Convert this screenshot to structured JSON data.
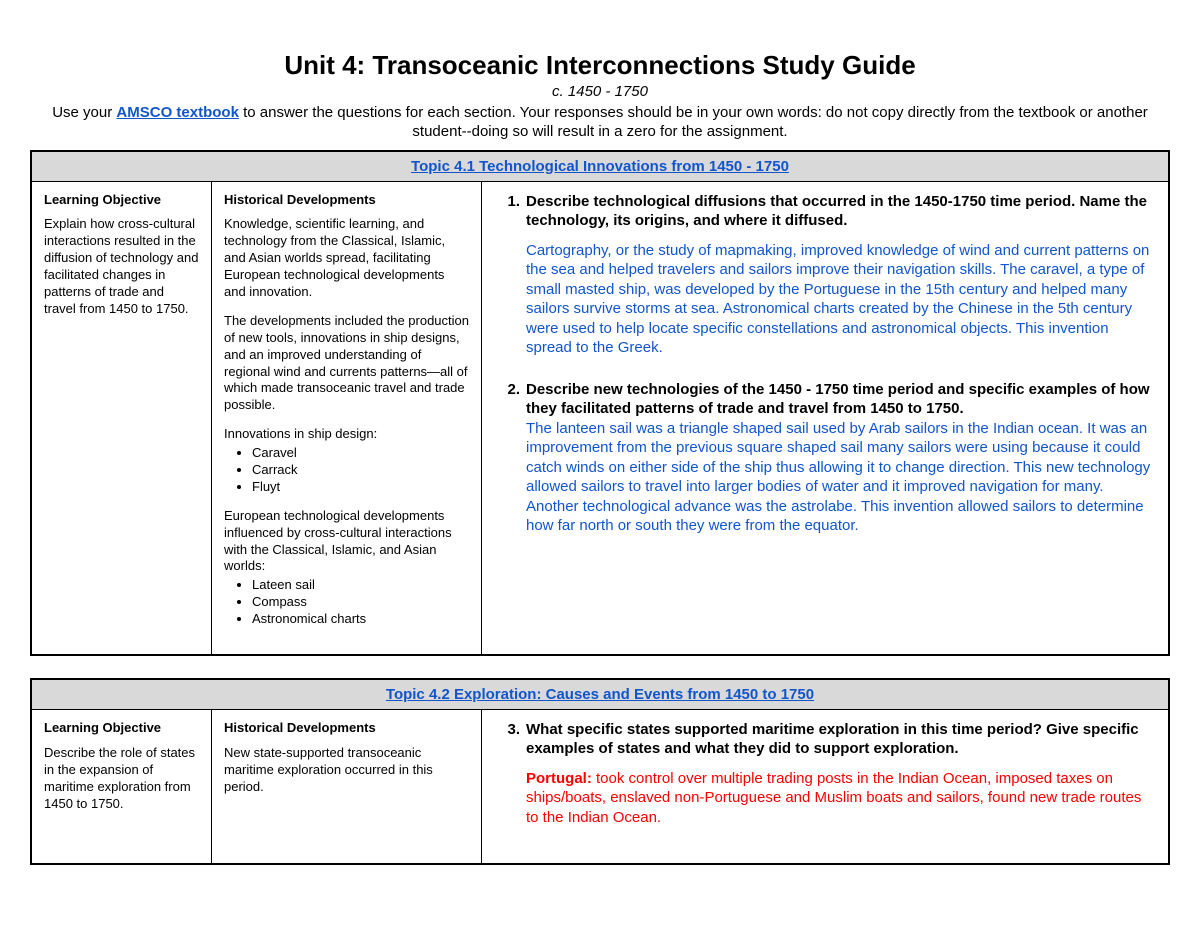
{
  "header": {
    "title": "Unit 4: Transoceanic Interconnections Study Guide",
    "subtitle": "c. 1450 - 1750",
    "instructions_pre": "Use your ",
    "textbook_label": "AMSCO textbook",
    "instructions_post": " to answer the questions for each section. Your responses should be in your own words: do not copy directly from the textbook or another student--doing so will result in a zero for the assignment."
  },
  "colors": {
    "link": "#1155cc",
    "answer_blue": "#1155cc",
    "answer_red": "#ff0000",
    "topic_bg": "#d9d9d9"
  },
  "sections": [
    {
      "topic": "Topic 4.1 Technological Innovations from 1450 - 1750",
      "lo_heading": "Learning Objective",
      "lo_text": "Explain how cross-cultural interactions resulted in the diffusion of technology and facilitated changes in patterns of trade and travel from 1450 to 1750.",
      "hd_heading": "Historical Developments",
      "hd_para1": "Knowledge, scientific learning, and technology from the Classical, Islamic, and Asian worlds spread, facilitating European technological developments and innovation.",
      "hd_para2": "The developments included the production of new tools, innovations in ship designs, and an improved understanding of regional wind and currents patterns—all of which made transoceanic travel and trade possible.",
      "hd_ship_label": "Innovations in ship design:",
      "hd_ships": [
        "Caravel",
        "Carrack",
        "Fluyt"
      ],
      "hd_para3": "European technological developments influenced by cross-cultural interactions with the Classical, Islamic, and Asian worlds:",
      "hd_tech": [
        "Lateen sail",
        "Compass",
        "Astronomical charts"
      ],
      "q1_num": "1.",
      "q1_prompt": "Describe technological diffusions that occurred in the 1450-1750 time period. Name the technology, its origins, and where it diffused.",
      "q1_answer": "Cartography, or the study of mapmaking, improved knowledge of wind and current patterns on the sea and helped travelers and sailors improve their navigation skills. The caravel, a type of small masted ship, was developed by the Portuguese in the 15th century and helped many sailors survive storms at sea. Astronomical charts created by the Chinese in the 5th century were used to help locate specific constellations and astronomical objects. This invention spread to the Greek.",
      "q2_num": "2.",
      "q2_prompt": "Describe new technologies of the 1450 - 1750 time period and specific examples of how they facilitated patterns of trade and travel from 1450 to 1750.",
      "q2_answer": "The lanteen sail was a triangle shaped sail used by Arab sailors in the Indian ocean.  It was an improvement from the previous square shaped sail many sailors were using because it could catch winds on either side of the ship thus allowing it to change direction. This new technology allowed sailors to travel into larger bodies of water and it improved navigation for many. Another technological advance was the astrolabe. This invention allowed sailors to determine how far north or south they were from the equator."
    },
    {
      "topic": "Topic 4.2 Exploration: Causes and Events from 1450 to 1750",
      "lo_heading": "Learning Objective",
      "lo_text": "Describe the role of states in the expansion of maritime exploration from 1450 to 1750.",
      "hd_heading": "Historical Developments",
      "hd_para1": "New state-supported transoceanic maritime exploration occurred in this period.",
      "q3_num": "3.",
      "q3_prompt": "What specific states supported maritime exploration in this time period? Give specific examples of states and what they did to support exploration.",
      "q3_state": "Portugal:",
      "q3_answer": " took control over multiple trading posts in the Indian Ocean, imposed taxes on ships/boats, enslaved non-Portuguese and Muslim boats and sailors, found new trade routes to the Indian Ocean."
    }
  ]
}
